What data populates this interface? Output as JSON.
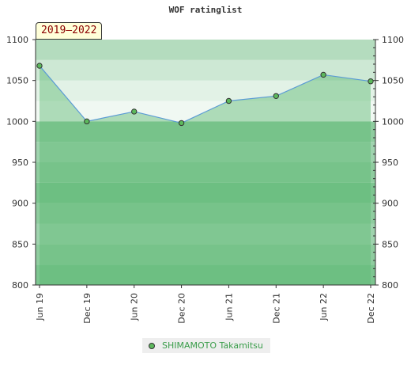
{
  "chart_data": {
    "type": "line",
    "title": "WOF ratinglist",
    "period_label": "2019–2022",
    "x": [
      "Jun 19",
      "Dec 19",
      "Jun 20",
      "Dec 20",
      "Jun 21",
      "Dec 21",
      "Jun 22",
      "Dec 22"
    ],
    "series": [
      {
        "name": "SHIMAMOTO Takamitsu",
        "values": [
          1068,
          1000,
          1012,
          998,
          1025,
          1031,
          1057,
          1049
        ]
      }
    ],
    "ylim": [
      800,
      1100
    ],
    "yticks": [
      800,
      850,
      900,
      950,
      1000,
      1050,
      1100
    ],
    "y_axis_both_sides": true,
    "legend_position": "bottom",
    "grid": false,
    "colors": {
      "line": "#5b9bd5",
      "area_fill": "#5cb870",
      "marker": "#5cb85c",
      "legend_text": "#3a9d4a",
      "band_light": "#f0f8f2",
      "band_mid": "#b4dcbe",
      "band_dark": "#7dc590"
    }
  }
}
